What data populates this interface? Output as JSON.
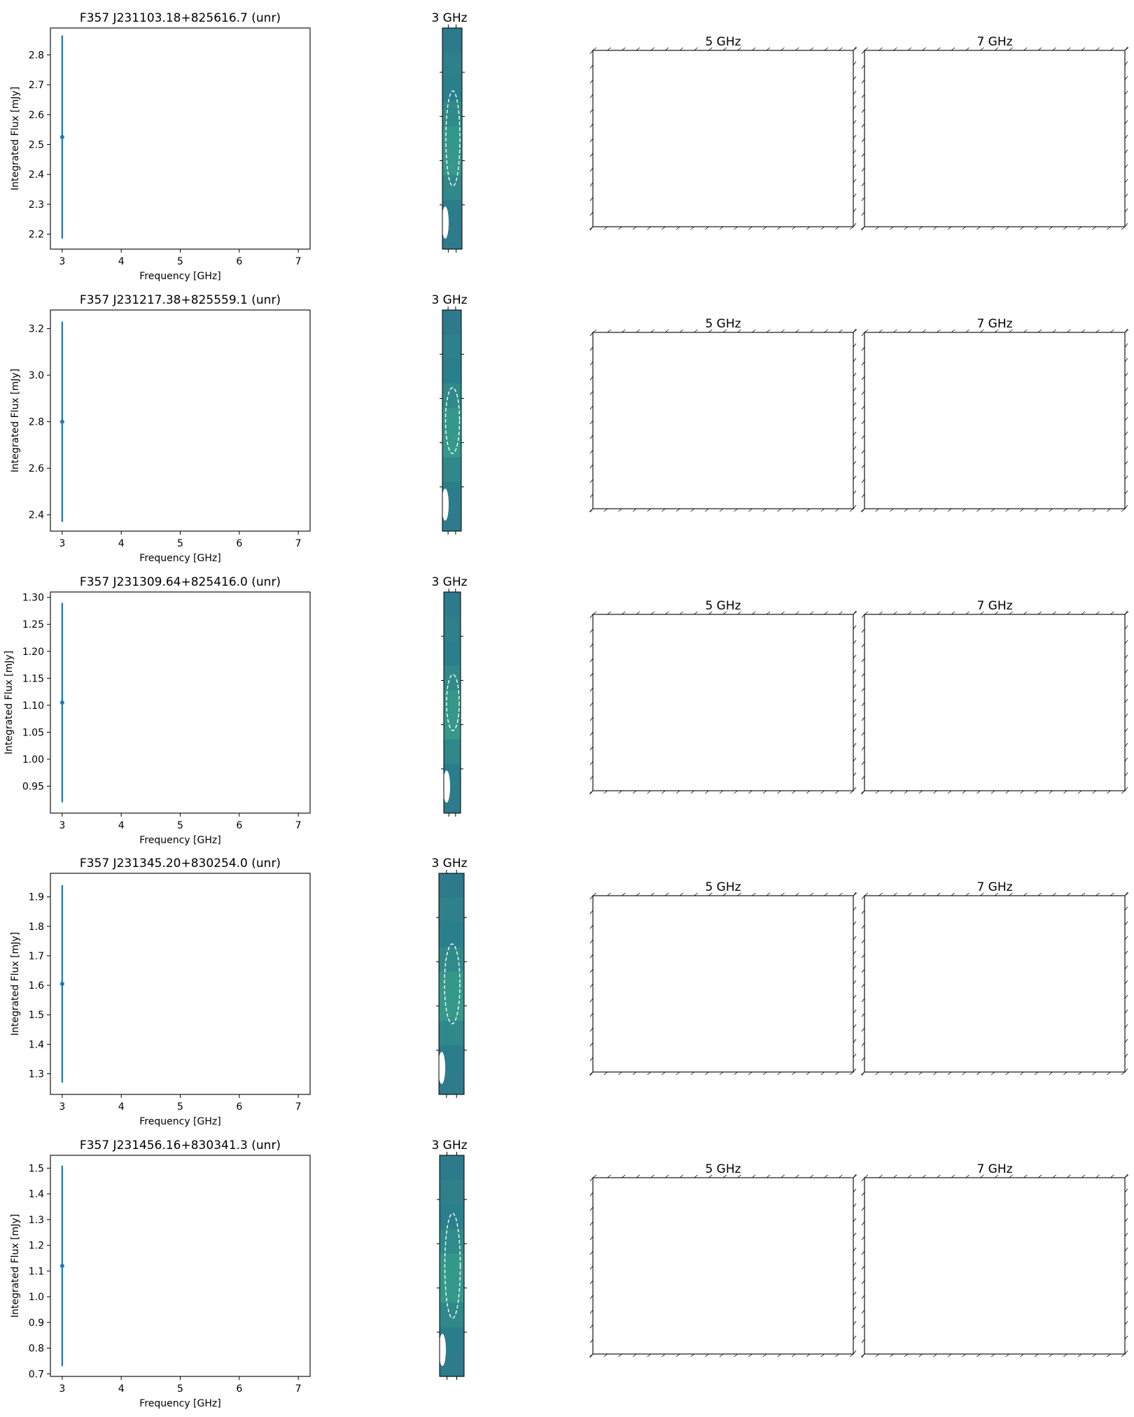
{
  "colors": {
    "errorbar": "#1f77b4",
    "image_base": "#2f7f8c",
    "axis": "#000000"
  },
  "chart_data": [
    {
      "type": "scatter",
      "title": "F357 J231103.18+825616.7 (unr)",
      "xlabel": "Frequency [GHz]",
      "ylabel": "Integrated Flux [mJy]",
      "xlim": [
        2.8,
        7.2
      ],
      "ylim": [
        2.15,
        2.89
      ],
      "xticks": [
        "3",
        "4",
        "5",
        "6",
        "7"
      ],
      "yticks": [
        "2.2",
        "2.3",
        "2.4",
        "2.5",
        "2.6",
        "2.7",
        "2.8"
      ],
      "points": [
        {
          "x": 3,
          "y": 2.525,
          "err": 0.34
        }
      ],
      "panels": [
        "3 GHz",
        "5 GHz",
        "7 GHz"
      ]
    },
    {
      "type": "scatter",
      "title": "F357 J231217.38+825559.1 (unr)",
      "xlabel": "Frequency [GHz]",
      "ylabel": "Integrated Flux [mJy]",
      "xlim": [
        2.8,
        7.2
      ],
      "ylim": [
        2.33,
        3.28
      ],
      "xticks": [
        "3",
        "4",
        "5",
        "6",
        "7"
      ],
      "yticks": [
        "2.4",
        "2.6",
        "2.8",
        "3.0",
        "3.2"
      ],
      "points": [
        {
          "x": 3,
          "y": 2.8,
          "err": 0.43
        }
      ],
      "panels": [
        "3 GHz",
        "5 GHz",
        "7 GHz"
      ]
    },
    {
      "type": "scatter",
      "title": "F357 J231309.64+825416.0 (unr)",
      "xlabel": "Frequency [GHz]",
      "ylabel": "Integrated Flux [mJy]",
      "xlim": [
        2.8,
        7.2
      ],
      "ylim": [
        0.9,
        1.31
      ],
      "xticks": [
        "3",
        "4",
        "5",
        "6",
        "7"
      ],
      "yticks": [
        "0.95",
        "1.00",
        "1.05",
        "1.10",
        "1.15",
        "1.20",
        "1.25",
        "1.30"
      ],
      "points": [
        {
          "x": 3,
          "y": 1.105,
          "err": 0.185
        }
      ],
      "panels": [
        "3 GHz",
        "5 GHz",
        "7 GHz"
      ]
    },
    {
      "type": "scatter",
      "title": "F357 J231345.20+830254.0 (unr)",
      "xlabel": "Frequency [GHz]",
      "ylabel": "Integrated Flux [mJy]",
      "xlim": [
        2.8,
        7.2
      ],
      "ylim": [
        1.23,
        1.98
      ],
      "xticks": [
        "3",
        "4",
        "5",
        "6",
        "7"
      ],
      "yticks": [
        "1.3",
        "1.4",
        "1.5",
        "1.6",
        "1.7",
        "1.8",
        "1.9"
      ],
      "points": [
        {
          "x": 3,
          "y": 1.605,
          "err": 0.335
        }
      ],
      "panels": [
        "3 GHz",
        "5 GHz",
        "7 GHz"
      ]
    },
    {
      "type": "scatter",
      "title": "F357 J231456.16+830341.3 (unr)",
      "xlabel": "Frequency [GHz]",
      "ylabel": "Integrated Flux [mJy]",
      "xlim": [
        2.8,
        7.2
      ],
      "ylim": [
        0.69,
        1.55
      ],
      "xticks": [
        "3",
        "4",
        "5",
        "6",
        "7"
      ],
      "yticks": [
        "0.7",
        "0.8",
        "0.9",
        "1.0",
        "1.1",
        "1.2",
        "1.3",
        "1.4",
        "1.5"
      ],
      "points": [
        {
          "x": 3,
          "y": 1.12,
          "err": 0.39
        }
      ],
      "panels": [
        "3 GHz",
        "5 GHz",
        "7 GHz"
      ]
    }
  ]
}
